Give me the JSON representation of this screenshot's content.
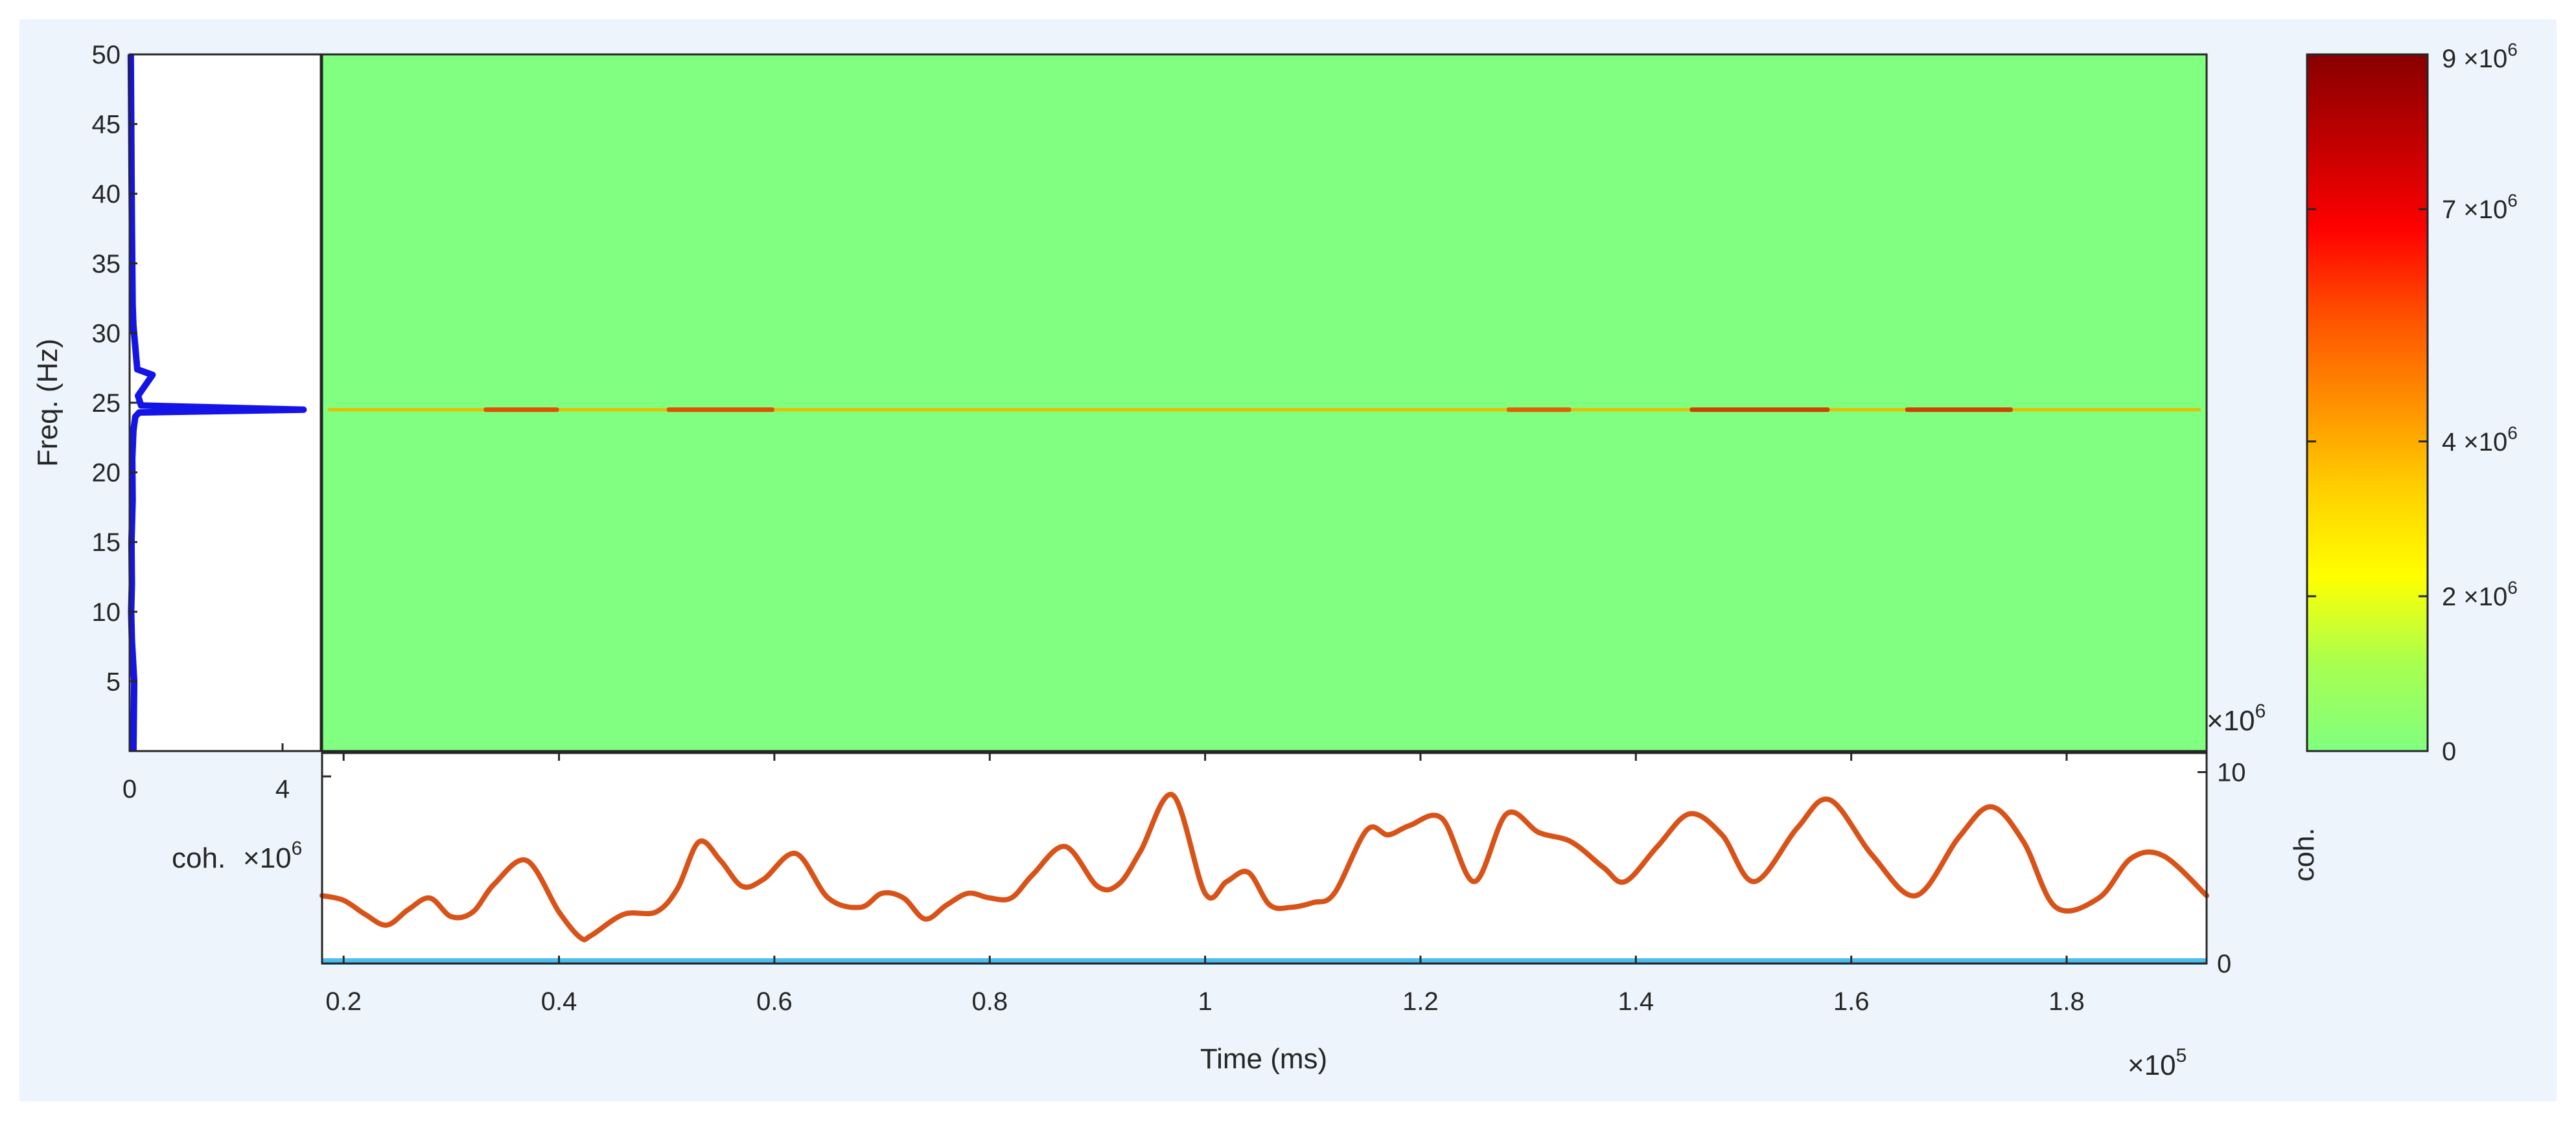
{
  "figure": {
    "background": "#edf4fc"
  },
  "spectrum_panel": {
    "chart_data": {
      "type": "line",
      "orientation": "horizontal",
      "xlabel": "coh.",
      "ylabel": "Freq. (Hz)",
      "xlim": [
        0,
        5.0
      ],
      "ylim": [
        0,
        50
      ],
      "xticks": [
        0,
        4
      ],
      "yticks": [
        5,
        10,
        15,
        20,
        25,
        30,
        35,
        40,
        45,
        50
      ],
      "x_exponent": "6",
      "color": "#1414e6",
      "series": [
        {
          "x": [
            0.1,
            0.12,
            0.08,
            0.06,
            0.04,
            0.06,
            0.05,
            0.08,
            0.07,
            0.1,
            0.15,
            0.25,
            4.55,
            0.3,
            0.22,
            0.6,
            0.2,
            0.15,
            0.1,
            0.08,
            0.07,
            0.06,
            0.05,
            0.04,
            0.03
          ],
          "y": [
            0,
            5,
            7,
            8,
            10,
            12,
            15,
            18,
            21,
            23,
            24,
            24.3,
            24.5,
            24.8,
            25.5,
            27,
            27.4,
            29,
            30.5,
            32,
            35,
            38,
            42,
            46,
            50
          ]
        }
      ]
    }
  },
  "spectrogram": {
    "chart_data": {
      "type": "heatmap",
      "background_color": "#80ff80",
      "xlim": [
        0.18,
        1.93
      ],
      "ylim": [
        0,
        50
      ],
      "band": {
        "freq": 24.5,
        "segments": [
          {
            "x": [
              0.185,
              1.925
            ],
            "color": "#e6c000"
          },
          {
            "x": [
              0.33,
              0.4
            ],
            "color": "#e05000"
          },
          {
            "x": [
              0.5,
              0.6
            ],
            "color": "#e05000"
          },
          {
            "x": [
              1.28,
              1.34
            ],
            "color": "#e06000"
          },
          {
            "x": [
              1.45,
              1.58
            ],
            "color": "#d04000"
          },
          {
            "x": [
              1.65,
              1.75
            ],
            "color": "#d04000"
          }
        ]
      }
    }
  },
  "colorbar": {
    "chart_data": {
      "type": "heatmap",
      "lim": [
        0,
        9
      ],
      "ticks": [
        {
          "value": 0,
          "label": "0"
        },
        {
          "value": 2,
          "label": "2"
        },
        {
          "value": 4,
          "label": "4"
        },
        {
          "value": 7,
          "label": "7"
        },
        {
          "value": 9,
          "label": "9"
        }
      ],
      "exponent": "6",
      "colors": [
        "#80ff80",
        "#a8ff50",
        "#ffff00",
        "#ffd000",
        "#ff9000",
        "#ff5000",
        "#ff0000",
        "#c00000",
        "#880000"
      ]
    }
  },
  "time_panel": {
    "chart_data": {
      "type": "line",
      "xlabel": "Time (ms)",
      "ylabel": "coh.",
      "xlim": [
        0.18,
        1.93
      ],
      "ylim_right": [
        0,
        11
      ],
      "ylim_left": [
        0,
        4.5
      ],
      "xticks": [
        0.2,
        0.4,
        0.6,
        0.8,
        1,
        1.2,
        1.4,
        1.6,
        1.8
      ],
      "yticks_right": [
        0,
        10
      ],
      "yticks_left": [
        4
      ],
      "x_exponent": "5",
      "y_exponent": "6",
      "series": [
        {
          "color": "#d95319",
          "axis": "left",
          "x": [
            0.18,
            0.2,
            0.22,
            0.24,
            0.26,
            0.28,
            0.3,
            0.32,
            0.34,
            0.37,
            0.4,
            0.42,
            0.43,
            0.46,
            0.49,
            0.51,
            0.53,
            0.55,
            0.57,
            0.59,
            0.62,
            0.65,
            0.68,
            0.7,
            0.72,
            0.74,
            0.76,
            0.78,
            0.8,
            0.82,
            0.84,
            0.87,
            0.9,
            0.92,
            0.94,
            0.97,
            1.0,
            1.02,
            1.04,
            1.06,
            1.08,
            1.1,
            1.12,
            1.15,
            1.17,
            1.19,
            1.22,
            1.25,
            1.28,
            1.31,
            1.34,
            1.37,
            1.39,
            1.42,
            1.45,
            1.48,
            1.51,
            1.55,
            1.58,
            1.62,
            1.66,
            1.7,
            1.73,
            1.76,
            1.79,
            1.83,
            1.86,
            1.89,
            1.93
          ],
          "y": [
            1.45,
            1.35,
            1.05,
            0.82,
            1.15,
            1.4,
            1.0,
            1.1,
            1.7,
            2.2,
            1.1,
            0.55,
            0.6,
            1.05,
            1.1,
            1.6,
            2.6,
            2.2,
            1.65,
            1.8,
            2.35,
            1.4,
            1.2,
            1.5,
            1.4,
            0.95,
            1.25,
            1.5,
            1.4,
            1.4,
            1.9,
            2.5,
            1.65,
            1.7,
            2.4,
            3.6,
            1.5,
            1.75,
            1.95,
            1.25,
            1.2,
            1.3,
            1.5,
            2.85,
            2.75,
            2.95,
            3.1,
            1.75,
            3.2,
            2.8,
            2.6,
            2.05,
            1.75,
            2.5,
            3.2,
            2.75,
            1.75,
            2.9,
            3.5,
            2.3,
            1.45,
            2.7,
            3.35,
            2.6,
            1.2,
            1.4,
            2.25,
            2.3,
            1.45
          ]
        },
        {
          "color": "#4dbeee",
          "axis": "right",
          "x": [
            0.18,
            1.93
          ],
          "y": [
            0.1,
            0.1
          ]
        }
      ]
    }
  }
}
